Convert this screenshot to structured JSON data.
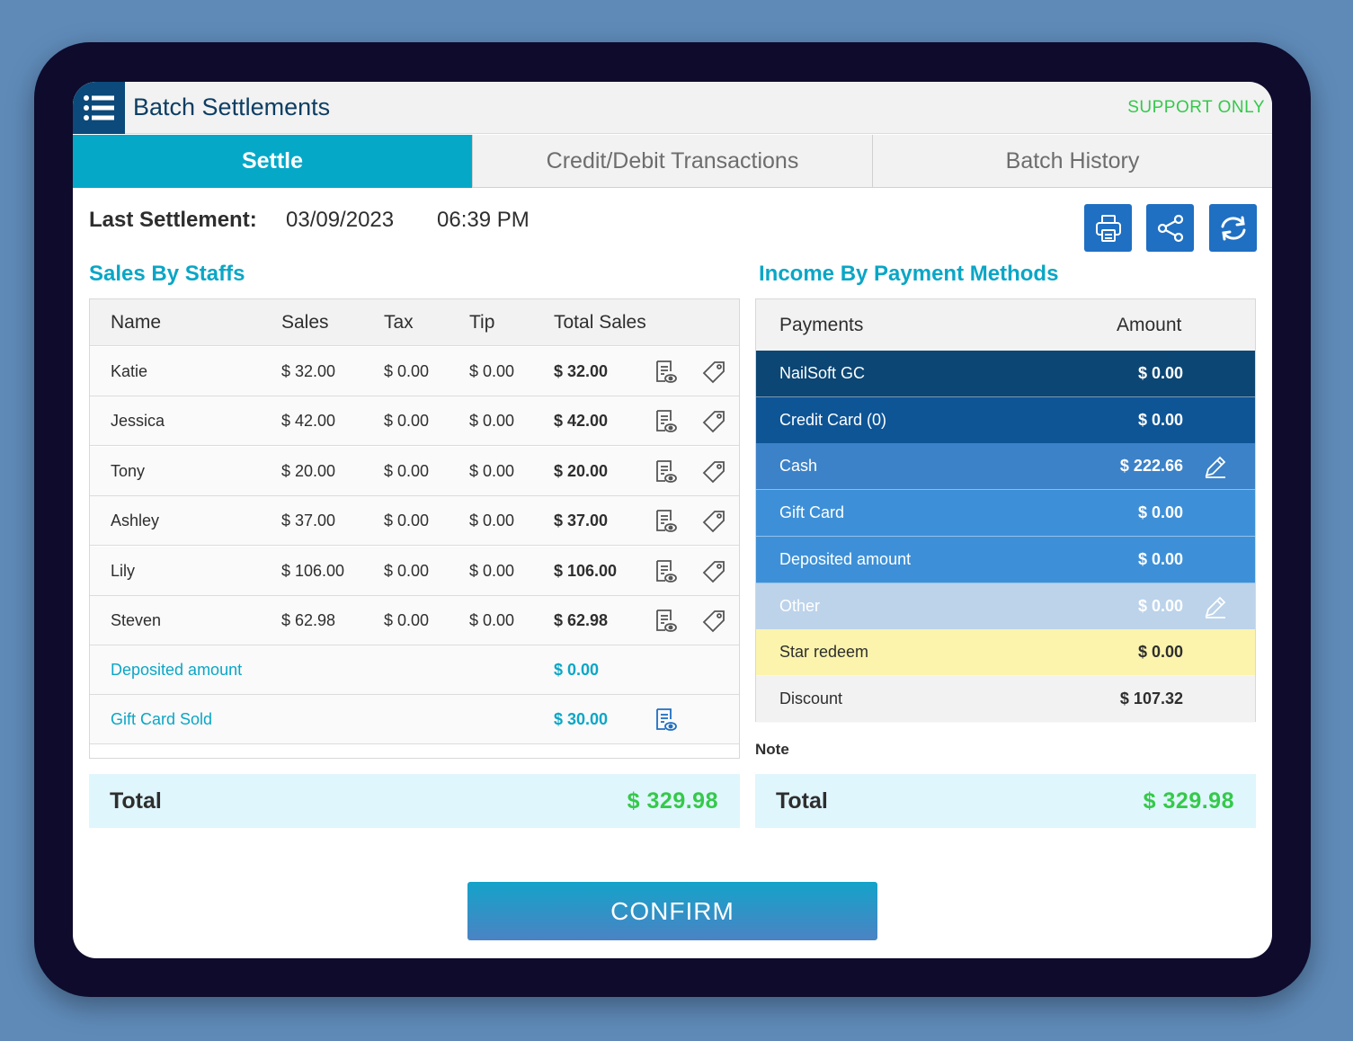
{
  "header": {
    "title": "Batch Settlements",
    "support": "SUPPORT ONLY"
  },
  "tabs": [
    {
      "label": "Settle",
      "active": true
    },
    {
      "label": "Credit/Debit Transactions",
      "active": false
    },
    {
      "label": "Batch History",
      "active": false
    }
  ],
  "last_settlement": {
    "label": "Last Settlement:",
    "date": "03/09/2023",
    "time": "06:39 PM"
  },
  "toolbar": {
    "print_icon": "printer-icon",
    "share_icon": "share-icon",
    "refresh_icon": "refresh-icon"
  },
  "sales": {
    "title": "Sales By Staffs",
    "columns": [
      "Name",
      "Sales",
      "Tax",
      "Tip",
      "Total Sales"
    ],
    "rows": [
      {
        "name": "Katie",
        "sales": "$  32.00",
        "tax": "$  0.00",
        "tip": "$  0.00",
        "total": "$  32.00"
      },
      {
        "name": "Jessica",
        "sales": "$  42.00",
        "tax": "$  0.00",
        "tip": "$  0.00",
        "total": "$  42.00"
      },
      {
        "name": "Tony",
        "sales": "$  20.00",
        "tax": "$  0.00",
        "tip": "$  0.00",
        "total": "$  20.00"
      },
      {
        "name": "Ashley",
        "sales": "$  37.00",
        "tax": "$  0.00",
        "tip": "$  0.00",
        "total": "$  37.00"
      },
      {
        "name": "Lily",
        "sales": "$  106.00",
        "tax": "$  0.00",
        "tip": "$  0.00",
        "total": "$  106.00"
      },
      {
        "name": "Steven",
        "sales": "$  62.98",
        "tax": "$  0.00",
        "tip": "$  0.00",
        "total": "$  62.98"
      }
    ],
    "deposited": {
      "label": "Deposited amount",
      "value": "$  0.00"
    },
    "gift_card_sold": {
      "label": "Gift Card Sold",
      "value": "$  30.00"
    },
    "total": {
      "label": "Total",
      "value": "$  329.98"
    }
  },
  "income": {
    "title": "Income By Payment Methods",
    "columns": [
      "Payments",
      "Amount"
    ],
    "rows": [
      {
        "name": "NailSoft GC",
        "amount": "$ 0.00",
        "bg": "#0c4674",
        "fg": "#ffffff",
        "edit": false
      },
      {
        "name": "Credit Card (0)",
        "amount": "$ 0.00",
        "bg": "#0e5596",
        "fg": "#ffffff",
        "edit": false
      },
      {
        "name": "Cash",
        "amount": "$ 222.66",
        "bg": "#3c82c8",
        "fg": "#ffffff",
        "edit": true
      },
      {
        "name": "Gift Card",
        "amount": "$ 0.00",
        "bg": "#3d90d8",
        "fg": "#ffffff",
        "edit": false
      },
      {
        "name": "Deposited amount",
        "amount": "$ 0.00",
        "bg": "#3d90d8",
        "fg": "#ffffff",
        "edit": false
      },
      {
        "name": "Other",
        "amount": "$ 0.00",
        "bg": "#bcd3ea",
        "fg": "#ffffff",
        "edit": true
      },
      {
        "name": "Star redeem",
        "amount": "$ 0.00",
        "bg": "#fcf4ad",
        "fg": "#2e2e2e",
        "edit": false
      },
      {
        "name": "Discount",
        "amount": "$ 107.32",
        "bg": "#f2f2f2",
        "fg": "#2e2e2e",
        "edit": false
      }
    ],
    "note_label": "Note",
    "total": {
      "label": "Total",
      "value": "$  329.98"
    }
  },
  "confirm_label": "CONFIRM",
  "colors": {
    "accent": "#06a8c8",
    "total_green": "#35c94b",
    "header_navy": "#0b4a7a"
  }
}
